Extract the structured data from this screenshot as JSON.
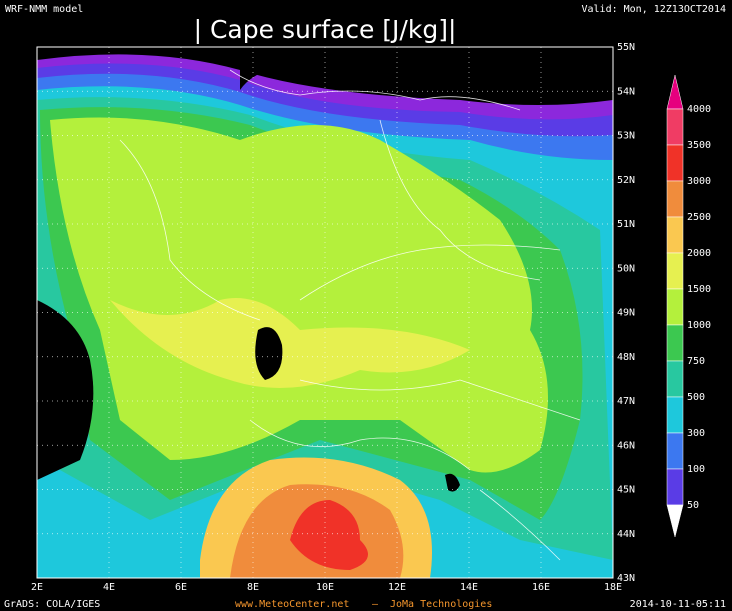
{
  "header": {
    "model": "WRF-NMM model",
    "valid": "Valid: Mon, 12Z13OCT2014",
    "title": "| Cape surface [J/kg]|"
  },
  "map": {
    "latitude_labels": [
      "55N",
      "54N",
      "53N",
      "52N",
      "51N",
      "50N",
      "49N",
      "48N",
      "47N",
      "46N",
      "45N",
      "44N",
      "43N"
    ],
    "longitude_labels": [
      "2E",
      "4E",
      "6E",
      "8E",
      "10E",
      "12E",
      "14E",
      "16E",
      "18E"
    ]
  },
  "legend": {
    "labels": [
      4000,
      3500,
      3000,
      2500,
      2000,
      1500,
      1000,
      750,
      500,
      300,
      100,
      50
    ]
  },
  "footer": {
    "software": "GrADS: COLA/IGES",
    "site": "www.MeteoCenter.net",
    "separator": "–",
    "company": "JoMa Technologies",
    "timestamp": "2014-10-11-05:11"
  }
}
